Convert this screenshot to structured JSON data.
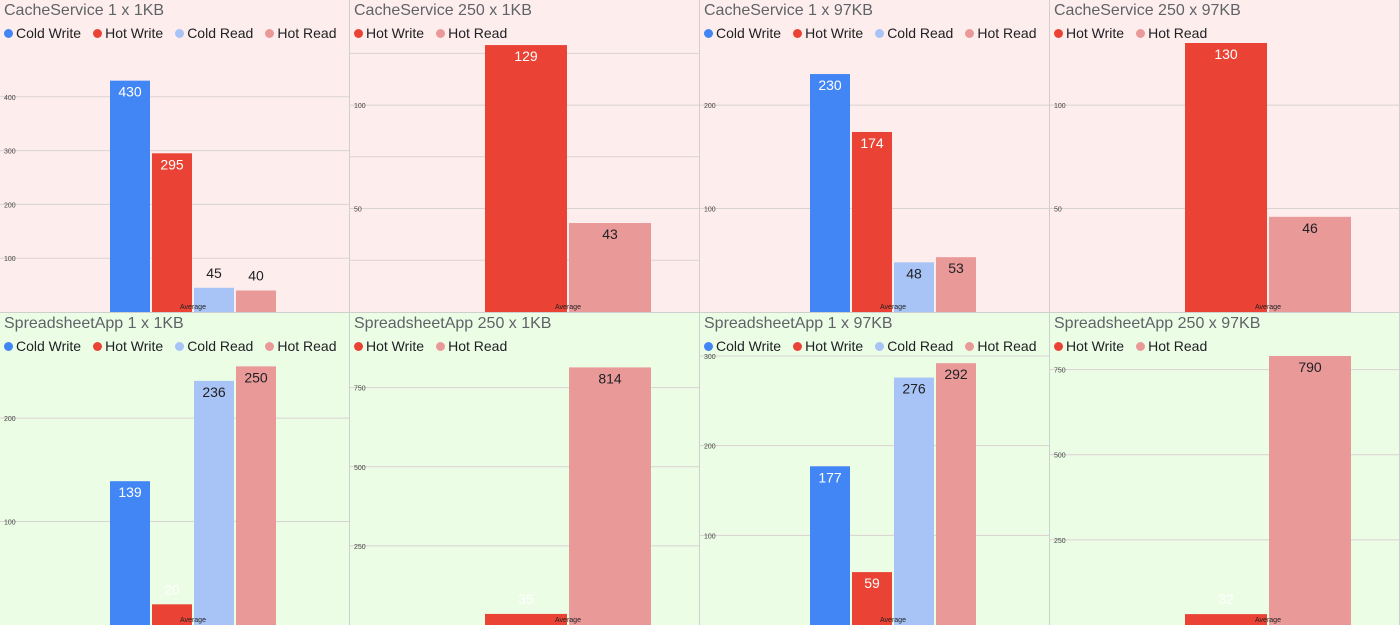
{
  "colors": {
    "Cold Write": "#4285f4",
    "Hot Write": "#ea4335",
    "Cold Read": "#a8c3f5",
    "Hot Read": "#ea9999"
  },
  "chart_data": [
    {
      "type": "bar",
      "title": "CacheService 1 x 1KB",
      "theme": "cache",
      "categories": [
        "Average"
      ],
      "series": [
        {
          "name": "Cold Write",
          "values": [
            430
          ]
        },
        {
          "name": "Hot Write",
          "values": [
            295
          ]
        },
        {
          "name": "Cold Read",
          "values": [
            45
          ]
        },
        {
          "name": "Hot Read",
          "values": [
            40
          ]
        }
      ],
      "ylim": [
        0,
        500
      ],
      "yticks": [
        100,
        200,
        300,
        400
      ],
      "ytick_labels": [
        "100",
        "200",
        "300",
        "400"
      ],
      "grid": true,
      "legend_position": "top-left"
    },
    {
      "type": "bar",
      "title": "CacheService 250 x 1KB",
      "theme": "cache",
      "categories": [
        "Average"
      ],
      "series": [
        {
          "name": "Hot Write",
          "values": [
            129
          ]
        },
        {
          "name": "Hot Read",
          "values": [
            43
          ]
        }
      ],
      "ylim": [
        0,
        130
      ],
      "yticks": [
        25,
        50,
        75,
        100,
        125
      ],
      "ytick_labels": [
        "",
        "50",
        "",
        "100",
        ""
      ],
      "grid": true,
      "legend_position": "top-left"
    },
    {
      "type": "bar",
      "title": "CacheService 1 x 97KB",
      "theme": "cache",
      "categories": [
        "Average"
      ],
      "series": [
        {
          "name": "Cold Write",
          "values": [
            230
          ]
        },
        {
          "name": "Hot Write",
          "values": [
            174
          ]
        },
        {
          "name": "Cold Read",
          "values": [
            48
          ]
        },
        {
          "name": "Hot Read",
          "values": [
            53
          ]
        }
      ],
      "ylim": [
        0,
        260
      ],
      "yticks": [
        100,
        200
      ],
      "ytick_labels": [
        "100",
        "200"
      ],
      "grid": true,
      "legend_position": "top-left"
    },
    {
      "type": "bar",
      "title": "CacheService 250 x 97KB",
      "theme": "cache",
      "categories": [
        "Average"
      ],
      "series": [
        {
          "name": "Hot Write",
          "values": [
            130
          ]
        },
        {
          "name": "Hot Read",
          "values": [
            46
          ]
        }
      ],
      "ylim": [
        0,
        130
      ],
      "yticks": [
        50,
        100
      ],
      "ytick_labels": [
        "50",
        "100"
      ],
      "grid": true,
      "legend_position": "top-left"
    },
    {
      "type": "bar",
      "title": "SpreadsheetApp 1 x 1KB",
      "theme": "sheet",
      "categories": [
        "Average"
      ],
      "series": [
        {
          "name": "Cold Write",
          "values": [
            139
          ]
        },
        {
          "name": "Hot Write",
          "values": [
            20
          ]
        },
        {
          "name": "Cold Read",
          "values": [
            236
          ]
        },
        {
          "name": "Hot Read",
          "values": [
            250
          ]
        }
      ],
      "ylim": [
        0,
        260
      ],
      "yticks": [
        100,
        200
      ],
      "ytick_labels": [
        "100",
        "200"
      ],
      "grid": true,
      "legend_position": "top-left"
    },
    {
      "type": "bar",
      "title": "SpreadsheetApp 250 x 1KB",
      "theme": "sheet",
      "categories": [
        "Average"
      ],
      "series": [
        {
          "name": "Hot Write",
          "values": [
            35
          ]
        },
        {
          "name": "Hot Read",
          "values": [
            814
          ]
        }
      ],
      "ylim": [
        0,
        850
      ],
      "yticks": [
        250,
        500,
        750
      ],
      "ytick_labels": [
        "250",
        "500",
        "750"
      ],
      "grid": true,
      "legend_position": "top-left"
    },
    {
      "type": "bar",
      "title": "SpreadsheetApp 1 x 97KB",
      "theme": "sheet",
      "categories": [
        "Average"
      ],
      "series": [
        {
          "name": "Cold Write",
          "values": [
            177
          ]
        },
        {
          "name": "Hot Write",
          "values": [
            59
          ]
        },
        {
          "name": "Cold Read",
          "values": [
            276
          ]
        },
        {
          "name": "Hot Read",
          "values": [
            292
          ]
        }
      ],
      "ylim": [
        0,
        300
      ],
      "yticks": [
        100,
        200,
        300
      ],
      "ytick_labels": [
        "100",
        "200",
        "300"
      ],
      "grid": true,
      "legend_position": "top-left"
    },
    {
      "type": "bar",
      "title": "SpreadsheetApp 250 x 97KB",
      "theme": "sheet",
      "categories": [
        "Average"
      ],
      "series": [
        {
          "name": "Hot Write",
          "values": [
            32
          ]
        },
        {
          "name": "Hot Read",
          "values": [
            790
          ]
        }
      ],
      "ylim": [
        0,
        790
      ],
      "yticks": [
        250,
        500,
        750
      ],
      "ytick_labels": [
        "250",
        "500",
        "750"
      ],
      "grid": true,
      "legend_position": "top-left"
    }
  ]
}
